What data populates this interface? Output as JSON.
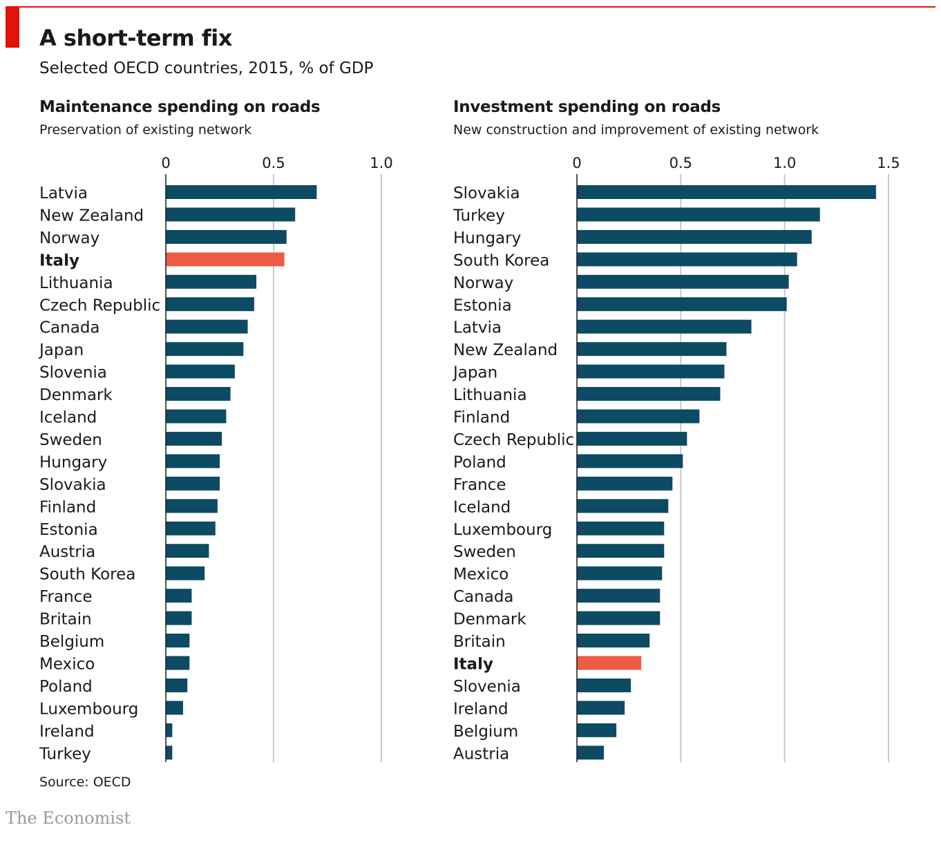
{
  "header": {
    "title": "A short-term fix",
    "subtitle": "Selected OECD countries, 2015, % of GDP"
  },
  "colors": {
    "bar": "#0d4a63",
    "highlight": "#ee5b43",
    "grid": "#c9c9c9",
    "accent": "#e3120b"
  },
  "chart_data": [
    {
      "type": "bar",
      "orientation": "horizontal",
      "title": "Maintenance spending on roads",
      "subtitle": "Preservation of existing network",
      "xlim": [
        0,
        1.0
      ],
      "ticks": [
        0,
        0.5,
        1.0
      ],
      "tick_labels": [
        "0",
        "0.5",
        "1.0"
      ],
      "grid": true,
      "highlight": "Italy",
      "categories": [
        "Latvia",
        "New Zealand",
        "Norway",
        "Italy",
        "Lithuania",
        "Czech Republic",
        "Canada",
        "Japan",
        "Slovenia",
        "Denmark",
        "Iceland",
        "Sweden",
        "Hungary",
        "Slovakia",
        "Finland",
        "Estonia",
        "Austria",
        "South Korea",
        "France",
        "Britain",
        "Belgium",
        "Mexico",
        "Poland",
        "Luxembourg",
        "Ireland",
        "Turkey"
      ],
      "values": [
        0.7,
        0.6,
        0.56,
        0.55,
        0.42,
        0.41,
        0.38,
        0.36,
        0.32,
        0.3,
        0.28,
        0.26,
        0.25,
        0.25,
        0.24,
        0.23,
        0.2,
        0.18,
        0.12,
        0.12,
        0.11,
        0.11,
        0.1,
        0.08,
        0.03,
        0.03
      ]
    },
    {
      "type": "bar",
      "orientation": "horizontal",
      "title": "Investment spending on roads",
      "subtitle": "New construction and improvement of existing network",
      "xlim": [
        0,
        1.5
      ],
      "ticks": [
        0,
        0.5,
        1.0,
        1.5
      ],
      "tick_labels": [
        "0",
        "0.5",
        "1.0",
        "1.5"
      ],
      "grid": true,
      "highlight": "Italy",
      "categories": [
        "Slovakia",
        "Turkey",
        "Hungary",
        "South Korea",
        "Norway",
        "Estonia",
        "Latvia",
        "New Zealand",
        "Japan",
        "Lithuania",
        "Finland",
        "Czech Republic",
        "Poland",
        "France",
        "Iceland",
        "Luxembourg",
        "Sweden",
        "Mexico",
        "Canada",
        "Denmark",
        "Britain",
        "Italy",
        "Slovenia",
        "Ireland",
        "Belgium",
        "Austria"
      ],
      "values": [
        1.44,
        1.17,
        1.13,
        1.06,
        1.02,
        1.01,
        0.84,
        0.72,
        0.71,
        0.69,
        0.59,
        0.53,
        0.51,
        0.46,
        0.44,
        0.42,
        0.42,
        0.41,
        0.4,
        0.4,
        0.35,
        0.31,
        0.26,
        0.23,
        0.19,
        0.13
      ]
    }
  ],
  "footer": {
    "source": "Source: OECD",
    "brand": "The Economist"
  }
}
